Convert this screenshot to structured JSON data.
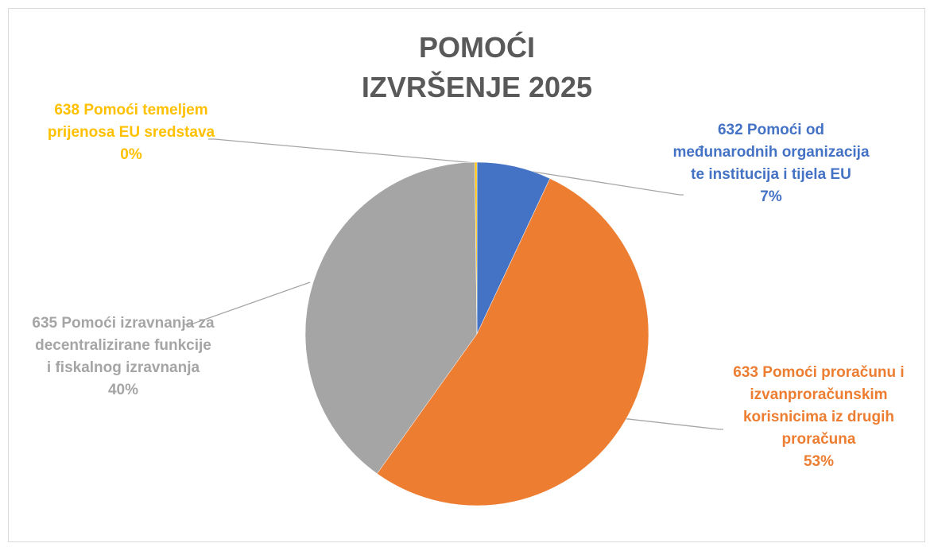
{
  "chart_data": {
    "type": "pie",
    "title": [
      "POMOĆI",
      "IZVRŠENJE 2025"
    ],
    "categories": [
      "632 Pomoći od međunarodnih organizacija te institucija i tijela EU",
      "633 Pomoći proračunu i izvanproračunskim korisnicima iz drugih proračuna",
      "635 Pomoći izravnanja za decentralizirane funkcije i fiskalnog izravnanja",
      "638 Pomoći temeljem prijenosa EU sredstava"
    ],
    "values": [
      7,
      53,
      40,
      0.2
    ],
    "value_labels": [
      "7%",
      "53%",
      "40%",
      "0%"
    ],
    "colors": [
      "#4472c4",
      "#ed7d31",
      "#a5a5a5",
      "#ffc000"
    ]
  }
}
